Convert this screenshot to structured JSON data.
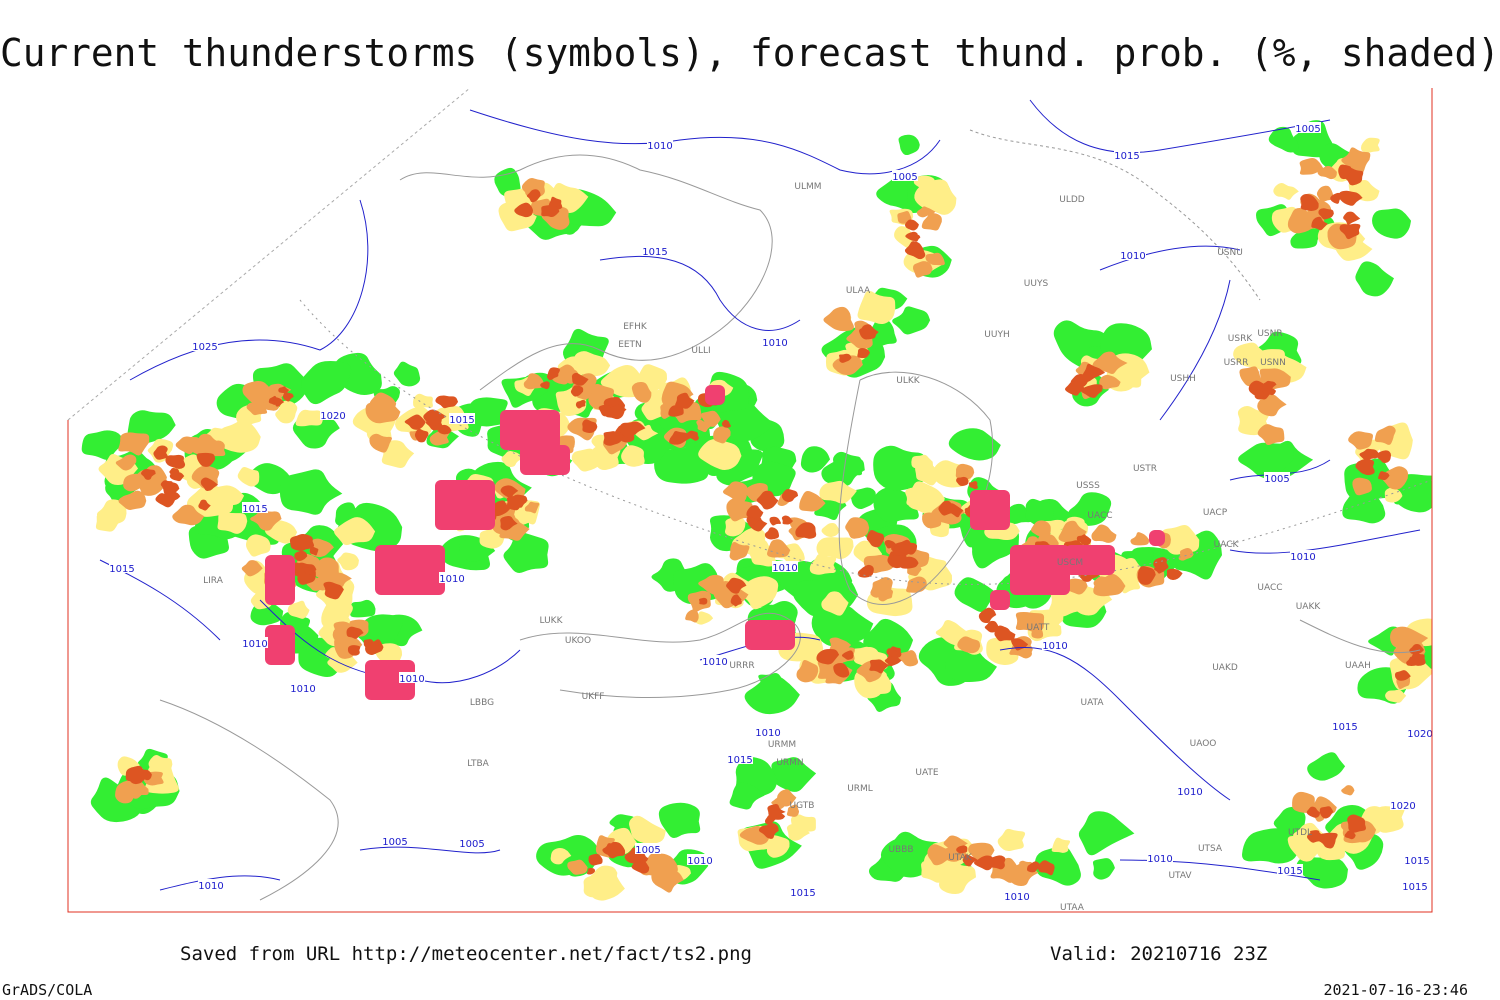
{
  "header": {
    "title": "Current thunderstorms (symbols), forecast thund. prob. (%, shaded)"
  },
  "footer": {
    "source": "Saved from URL http://meteocenter.net/fact/ts2.png",
    "valid": "Valid: 20210716 23Z",
    "software": "GrADS/COLA",
    "timestamp": "2021-07-16-23:46"
  },
  "map": {
    "isobar_labels": [
      "1010",
      "1005",
      "1015",
      "1005",
      "1015",
      "1010",
      "1025",
      "1010",
      "1020",
      "1015",
      "1015",
      "1015",
      "1010",
      "1010",
      "1005",
      "1010",
      "1010",
      "1010",
      "1010",
      "1010",
      "1010",
      "1010",
      "1015",
      "1015",
      "1020",
      "1010",
      "1020",
      "1005",
      "1005",
      "1005",
      "1010",
      "1010",
      "1015",
      "1015",
      "1015",
      "1015",
      "1010",
      "1010"
    ],
    "station_labels": [
      "ULDD",
      "USNU",
      "ULAA",
      "UUYS",
      "UUYH",
      "USRK",
      "USNR",
      "USNN",
      "USRR",
      "USHH",
      "ULKK",
      "USSS",
      "USTR",
      "UACC",
      "UACP",
      "UACK",
      "UACC",
      "UAKK",
      "USCM",
      "UATT",
      "UAKD",
      "UAAH",
      "UATA",
      "UAOO",
      "UATE",
      "URML",
      "UBBB",
      "UTAK",
      "UTSA",
      "UTAV",
      "UTAA",
      "UTDL",
      "LUKK",
      "UKOO",
      "LBBG",
      "LIRA",
      "URRR",
      "URMM",
      "URMN",
      "UGTB",
      "LTBA",
      "EFHK",
      "EETN",
      "ULLI",
      "UKFF",
      "ULMM"
    ]
  }
}
